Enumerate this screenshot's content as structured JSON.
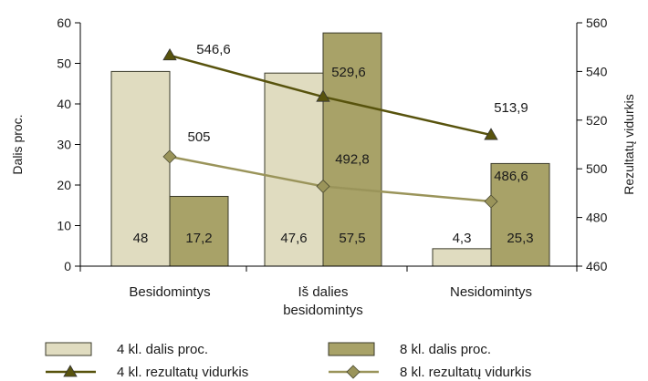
{
  "chart_data": {
    "type": "bar",
    "categories": [
      [
        "Besidomintys"
      ],
      [
        "Iš dalies",
        "besidomintys"
      ],
      [
        "Nesidomintys"
      ]
    ],
    "ylabel": "Dalis proc.",
    "y2label": "Rezultatų vidurkis",
    "ylim": [
      0,
      60
    ],
    "y2lim": [
      460,
      560
    ],
    "yticks": [
      0,
      10,
      20,
      30,
      40,
      50,
      60
    ],
    "y2ticks": [
      460,
      480,
      500,
      520,
      540,
      560
    ],
    "series": [
      {
        "name": "4 kl. dalis proc.",
        "kind": "bar",
        "axis": "left",
        "color": "#e0dcc0",
        "values": [
          48,
          47.6,
          4.3
        ],
        "labels": [
          "48",
          "47,6",
          "4,3"
        ]
      },
      {
        "name": "8 kl. dalis proc.",
        "kind": "bar",
        "axis": "left",
        "color": "#a8a268",
        "values": [
          17.2,
          57.5,
          25.3
        ],
        "labels": [
          "17,2",
          "57,5",
          "25,3"
        ]
      },
      {
        "name": "4 kl. rezultatų vidurkis",
        "kind": "line",
        "axis": "right",
        "color": "#58530d",
        "marker": "triangle",
        "values": [
          546.6,
          529.6,
          513.9
        ],
        "labels": [
          "546,6",
          "529,6",
          "513,9"
        ]
      },
      {
        "name": "8 kl. rezultatų vidurkis",
        "kind": "line",
        "axis": "right",
        "color": "#9a945a",
        "marker": "diamond",
        "values": [
          505,
          492.8,
          486.6
        ],
        "labels": [
          "505",
          "492,8",
          "486,6"
        ]
      }
    ],
    "legend_position": "bottom",
    "grid": false
  }
}
